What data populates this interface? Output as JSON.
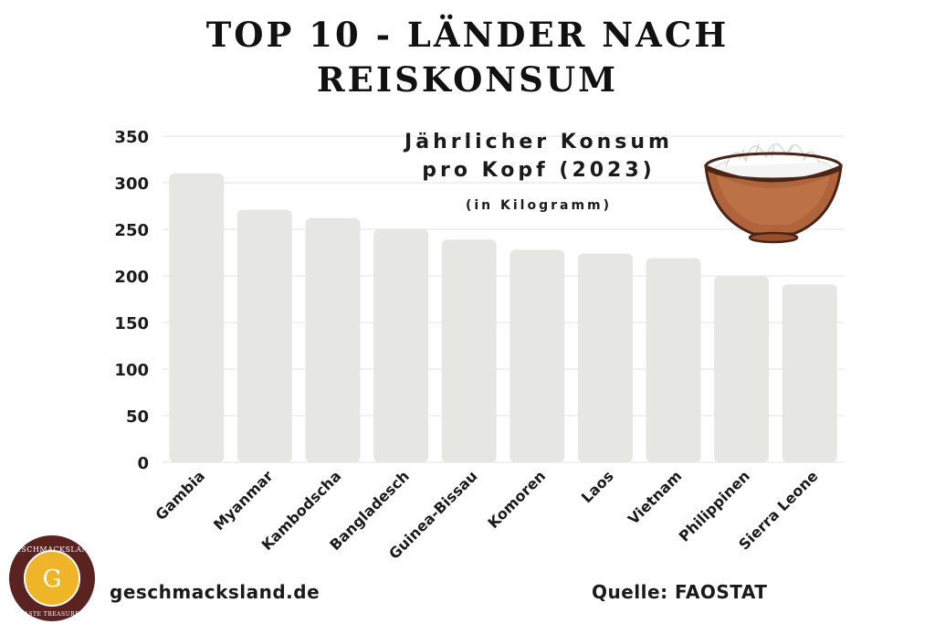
{
  "title_lines": [
    "TOP 10 - LÄNDER NACH",
    "REISKONSUM"
  ],
  "subtitle_lines": [
    "Jährlicher Konsum",
    "pro Kopf (2023)"
  ],
  "unit_label": "(in Kilogramm)",
  "footer": {
    "website": "geschmacksland.de",
    "source": "Quelle: FAOSTAT"
  },
  "logo": {
    "letter": "G",
    "ring_text": "GESCHMACKSLAND",
    "tagline": "TASTE TREASURES"
  },
  "colors": {
    "bar": "#e6e7e3",
    "grid": "#e3e3e3",
    "text": "#111111",
    "bowl": "#b0643c",
    "logo_ring": "#5a2320",
    "logo_gold": "#f0b429"
  },
  "icons": [
    "rice-bowl-icon",
    "geschmacksland-logo-icon"
  ],
  "chart_data": {
    "type": "bar",
    "categories": [
      "Gambia",
      "Myanmar",
      "Kambodscha",
      "Bangladesch",
      "Guinea-Bissau",
      "Komoren",
      "Laos",
      "Vietnam",
      "Philippinen",
      "Sierra Leone"
    ],
    "values": [
      310,
      271,
      262,
      250,
      239,
      228,
      224,
      219,
      200,
      191
    ],
    "ylim": [
      0,
      350
    ],
    "yticks": [
      0,
      50,
      100,
      150,
      200,
      250,
      300,
      350
    ],
    "xlabel": "",
    "ylabel": "",
    "grid": true,
    "legend": "none"
  }
}
